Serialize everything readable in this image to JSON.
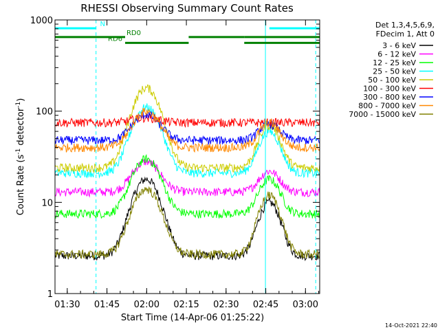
{
  "chart_data": {
    "type": "line",
    "title": "RHESSI Observing Summary Count Rates",
    "xlabel": "Start Time (14-Apr-06 01:25:22)",
    "ylabel_main": "Count Rate (s",
    "ylabel_sup1": "-1",
    "ylabel_mid": " detector",
    "ylabel_sup2": "-1",
    "ylabel_end": ")",
    "yscale": "log",
    "xlim_minutes": [
      0,
      100
    ],
    "ylim": [
      1,
      1000
    ],
    "x_ticks": [
      {
        "minute": 4.63,
        "label": "01:30"
      },
      {
        "minute": 19.63,
        "label": "01:45"
      },
      {
        "minute": 34.63,
        "label": "02:00"
      },
      {
        "minute": 49.63,
        "label": "02:15"
      },
      {
        "minute": 64.63,
        "label": "02:30"
      },
      {
        "minute": 79.63,
        "label": "02:45"
      },
      {
        "minute": 94.63,
        "label": "03:00"
      }
    ],
    "y_ticks": [
      {
        "value": 1,
        "label": "1"
      },
      {
        "value": 10,
        "label": "10"
      },
      {
        "value": 100,
        "label": "100"
      },
      {
        "value": 1000,
        "label": "1000"
      }
    ],
    "legend_header": [
      "Det 1,3,4,5,6,9,",
      "FDecim 1, Att 0"
    ],
    "legend_position": "right",
    "series": [
      {
        "name": "3 - 6 keV",
        "color": "#000000",
        "base": 2.6,
        "mid": 18,
        "peak": 10,
        "day": [
          [
            0,
            14
          ],
          [
            42,
            52
          ],
          [
            86,
            90
          ]
        ]
      },
      {
        "name": "6 - 12 keV",
        "color": "#ff00ff",
        "base": 13,
        "mid": 28,
        "peak": 22,
        "day": [
          [
            0,
            14
          ],
          [
            42,
            52
          ],
          [
            86,
            90
          ]
        ]
      },
      {
        "name": "12 - 25 keV",
        "color": "#00ff00",
        "base": 7.5,
        "mid": 30,
        "peak": 18,
        "day": [
          [
            0,
            14
          ],
          [
            42,
            52
          ],
          [
            86,
            90
          ]
        ]
      },
      {
        "name": "25 - 50 keV",
        "color": "#00ffff",
        "base": 21,
        "mid": 110,
        "peak": 60,
        "day": [
          [
            0,
            14
          ],
          [
            42,
            52
          ],
          [
            86,
            90
          ]
        ]
      },
      {
        "name": "50 - 100 keV",
        "color": "#cccc00",
        "base": 24,
        "mid": 180,
        "peak": 70,
        "day": [
          [
            0,
            14
          ],
          [
            42,
            52
          ],
          [
            86,
            90
          ]
        ]
      },
      {
        "name": "100 - 300 keV",
        "color": "#ff0000",
        "base": 75,
        "mid": 85,
        "peak": 70,
        "day": [
          [
            0,
            14
          ],
          [
            42,
            52
          ],
          [
            86,
            90
          ]
        ]
      },
      {
        "name": "300 - 800 keV",
        "color": "#0000ff",
        "base": 48,
        "mid": 92,
        "peak": 72,
        "day": [
          [
            0,
            14
          ],
          [
            42,
            52
          ],
          [
            86,
            90
          ]
        ]
      },
      {
        "name": "800 - 7000 keV",
        "color": "#ff8800",
        "base": 40,
        "mid": 100,
        "peak": 75,
        "day": [
          [
            0,
            14
          ],
          [
            42,
            52
          ],
          [
            86,
            90
          ]
        ]
      },
      {
        "name": "7000 - 15000 keV",
        "color": "#808000",
        "base": 2.7,
        "mid": 14,
        "peak": 12,
        "day": [
          [
            0,
            14
          ],
          [
            42,
            52
          ],
          [
            86,
            90
          ]
        ]
      }
    ],
    "peaks_minutes": [
      34.5,
      81
    ],
    "flags": [
      {
        "label": "N",
        "color": "#00ffff",
        "segments": [
          [
            0,
            15.5
          ],
          [
            81,
            100
          ]
        ],
        "yvalue": 810,
        "label_at": 17
      },
      {
        "label": "RD0",
        "color": "#008000",
        "segments": [
          [
            0,
            26.5
          ],
          [
            50.5,
            71.5
          ],
          [
            71.5,
            100
          ]
        ],
        "yvalue": 650,
        "label_at": 27
      },
      {
        "label": "RD6",
        "color": "#008000",
        "segments": [
          [
            26.5,
            50.5
          ],
          [
            71.5,
            100
          ]
        ],
        "yvalue": 560,
        "label_at": 20
      }
    ],
    "vlines_solid": [
      0,
      79.5
    ],
    "vlines_dashed": [
      15.5,
      98.5
    ],
    "vline_color": "#00ffff",
    "timestamp": "14-Oct-2021 22:40"
  }
}
